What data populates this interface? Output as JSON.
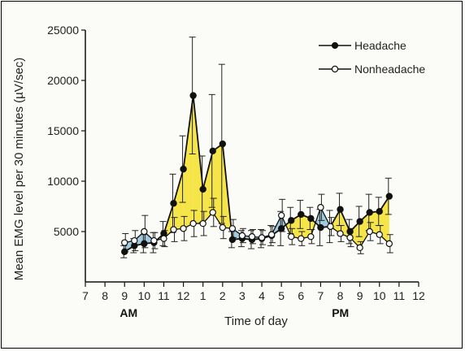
{
  "chart_data": {
    "type": "line",
    "title": "",
    "xlabel": "Time of day",
    "ylabel": "Mean EMG level per 30 minutes (µV/sec)",
    "x_ticks": [
      "7",
      "8",
      "9",
      "10",
      "11",
      "12",
      "1",
      "2",
      "3",
      "4",
      "5",
      "6",
      "7",
      "8",
      "9",
      "10",
      "11",
      "12"
    ],
    "x_range": [
      7,
      24
    ],
    "x_annotations": [
      {
        "label": "AM",
        "x": 9
      },
      {
        "label": "PM",
        "x": 19.8
      }
    ],
    "y_ticks": [
      5000,
      10000,
      15000,
      20000,
      25000
    ],
    "ylim": [
      0,
      25000
    ],
    "grid": false,
    "legend_position": "top-right",
    "fill_between_series": "#f5e12a",
    "fill_between_alt": "#8fc1d8",
    "x": [
      9,
      9.5,
      10,
      10.5,
      11,
      11.5,
      12,
      12.5,
      13,
      13.5,
      14,
      14.5,
      15,
      15.5,
      16,
      16.5,
      17,
      17.5,
      18,
      18.5,
      19,
      19.5,
      20,
      20.5,
      21,
      21.5,
      22,
      22.5,
      23
    ],
    "series": [
      {
        "name": "Headache",
        "marker": "filled",
        "values": [
          3000,
          3600,
          3800,
          3900,
          4800,
          7800,
          11200,
          18500,
          9200,
          13000,
          13700,
          4200,
          4300,
          4200,
          4300,
          4600,
          5300,
          6100,
          6700,
          6300,
          5400,
          5500,
          7200,
          5000,
          6000,
          6900,
          7000,
          8500,
          null
        ],
        "error": [
          600,
          700,
          900,
          1000,
          1200,
          2900,
          3300,
          5800,
          3300,
          5600,
          7900,
          800,
          800,
          900,
          900,
          1000,
          1700,
          1300,
          1400,
          1100,
          1800,
          1600,
          1600,
          1200,
          1500,
          1800,
          1400,
          1800,
          null
        ]
      },
      {
        "name": "Nonheadache",
        "marker": "open",
        "values": [
          3900,
          4100,
          5000,
          4100,
          4300,
          5200,
          5300,
          5800,
          5800,
          6900,
          5400,
          5300,
          4600,
          4500,
          4400,
          4700,
          6600,
          4500,
          4300,
          4500,
          7400,
          5500,
          4800,
          4400,
          3400,
          5000,
          4700,
          3800,
          null
        ],
        "error": [
          900,
          1000,
          1600,
          800,
          800,
          1200,
          1200,
          1300,
          1200,
          1400,
          1100,
          900,
          700,
          700,
          700,
          800,
          1600,
          800,
          700,
          700,
          1300,
          900,
          800,
          900,
          600,
          900,
          900,
          900,
          null
        ]
      }
    ]
  }
}
